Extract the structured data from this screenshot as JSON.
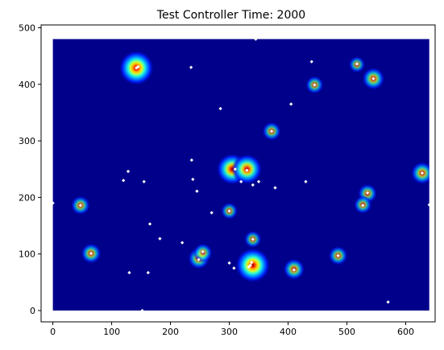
{
  "chart_data": {
    "type": "heatmap",
    "title": "Test Controller Time: 2000",
    "xlabel": "",
    "ylabel": "",
    "xlim": [
      -20,
      650
    ],
    "ylim": [
      -20,
      505
    ],
    "heatmap_extent": {
      "x": [
        0,
        640
      ],
      "y": [
        0,
        480
      ]
    },
    "xticks": [
      0,
      100,
      200,
      300,
      400,
      500,
      600
    ],
    "yticks": [
      0,
      100,
      200,
      300,
      400,
      500
    ],
    "grid": false,
    "colormap": "jet",
    "colors": {
      "background": "#00008b",
      "points": "#ffffff"
    },
    "hotspots": [
      {
        "x": 142,
        "y": 429,
        "intensity": 1.0
      },
      {
        "x": 305,
        "y": 250,
        "intensity": 0.85
      },
      {
        "x": 330,
        "y": 250,
        "intensity": 0.8
      },
      {
        "x": 340,
        "y": 80,
        "intensity": 1.0
      },
      {
        "x": 545,
        "y": 410,
        "intensity": 0.45
      },
      {
        "x": 628,
        "y": 243,
        "intensity": 0.45
      },
      {
        "x": 248,
        "y": 92,
        "intensity": 0.4
      },
      {
        "x": 255,
        "y": 102,
        "intensity": 0.3
      },
      {
        "x": 65,
        "y": 101,
        "intensity": 0.35
      },
      {
        "x": 410,
        "y": 73,
        "intensity": 0.4
      },
      {
        "x": 535,
        "y": 207,
        "intensity": 0.3
      },
      {
        "x": 527,
        "y": 187,
        "intensity": 0.25
      },
      {
        "x": 485,
        "y": 97,
        "intensity": 0.3
      },
      {
        "x": 47,
        "y": 186,
        "intensity": 0.3
      },
      {
        "x": 372,
        "y": 317,
        "intensity": 0.28
      },
      {
        "x": 445,
        "y": 399,
        "intensity": 0.25
      },
      {
        "x": 300,
        "y": 176,
        "intensity": 0.2
      },
      {
        "x": 340,
        "y": 126,
        "intensity": 0.22
      },
      {
        "x": 517,
        "y": 435,
        "intensity": 0.18
      }
    ],
    "points": [
      [
        0,
        190
      ],
      [
        47,
        186
      ],
      [
        65,
        101
      ],
      [
        130,
        67
      ],
      [
        128,
        246
      ],
      [
        120,
        230
      ],
      [
        155,
        228
      ],
      [
        152,
        0
      ],
      [
        162,
        67
      ],
      [
        165,
        153
      ],
      [
        182,
        127
      ],
      [
        142,
        429
      ],
      [
        145,
        431
      ],
      [
        220,
        120
      ],
      [
        235,
        430
      ],
      [
        236,
        266
      ],
      [
        238,
        232
      ],
      [
        245,
        211
      ],
      [
        248,
        90
      ],
      [
        255,
        104
      ],
      [
        270,
        173
      ],
      [
        285,
        357
      ],
      [
        300,
        84
      ],
      [
        300,
        176
      ],
      [
        308,
        75
      ],
      [
        310,
        250
      ],
      [
        320,
        228
      ],
      [
        330,
        248
      ],
      [
        333,
        77
      ],
      [
        336,
        80
      ],
      [
        338,
        85
      ],
      [
        340,
        126
      ],
      [
        340,
        222
      ],
      [
        345,
        480
      ],
      [
        350,
        228
      ],
      [
        372,
        317
      ],
      [
        378,
        217
      ],
      [
        405,
        365
      ],
      [
        410,
        72
      ],
      [
        430,
        228
      ],
      [
        440,
        440
      ],
      [
        445,
        399
      ],
      [
        485,
        97
      ],
      [
        517,
        436
      ],
      [
        527,
        186
      ],
      [
        535,
        208
      ],
      [
        545,
        410
      ],
      [
        570,
        15
      ],
      [
        628,
        243
      ],
      [
        640,
        187
      ]
    ]
  }
}
